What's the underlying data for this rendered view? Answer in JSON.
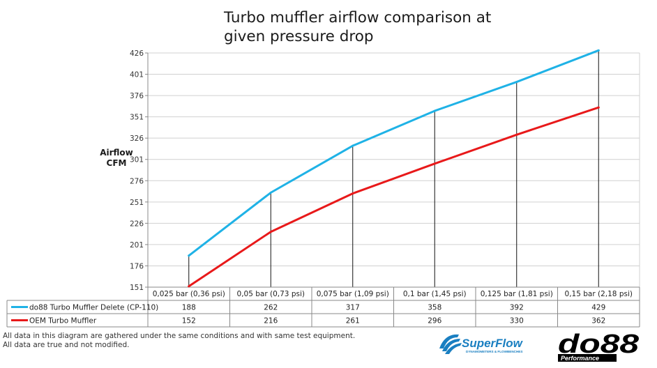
{
  "title_lines": [
    "Turbo muffler airflow comparison at",
    "given pressure drop"
  ],
  "footnotes": [
    "All data in this diagram are gathered under the same conditions and with same test equipment.",
    "All data are true and not modified."
  ],
  "logos": {
    "superflow": {
      "text": "SuperFlow",
      "tagline": "DYNAMOMETERS & FLOWBENCHES",
      "color": "#1a7fc1"
    },
    "do88": {
      "text": "do88",
      "tagline": "Performance",
      "color": "#000000"
    }
  },
  "chart_data": {
    "type": "line",
    "title": "Turbo muffler airflow comparison at given pressure drop",
    "ylabel": "Airflow CFM",
    "xlabel": "",
    "categories": [
      "0,025 bar (0,36 psi)",
      "0,05 bar (0,73 psi)",
      "0,075 bar (1,09 psi)",
      "0,1 bar (1,45 psi)",
      "0,125 bar (1,81 psi)",
      "0,15 bar (2,18 psi)"
    ],
    "yticks": [
      151,
      176,
      201,
      226,
      251,
      276,
      301,
      326,
      351,
      376,
      401,
      426
    ],
    "ylim": [
      151,
      426
    ],
    "grid": true,
    "legend": "data table below chart",
    "series": [
      {
        "name": "do88 Turbo Muffler Delete (CP-110)",
        "color": "#1fb2e6",
        "values": [
          188,
          262,
          317,
          358,
          392,
          429
        ]
      },
      {
        "name": "OEM Turbo Muffler",
        "color": "#e8191a",
        "values": [
          152,
          216,
          261,
          296,
          330,
          362
        ]
      }
    ]
  }
}
